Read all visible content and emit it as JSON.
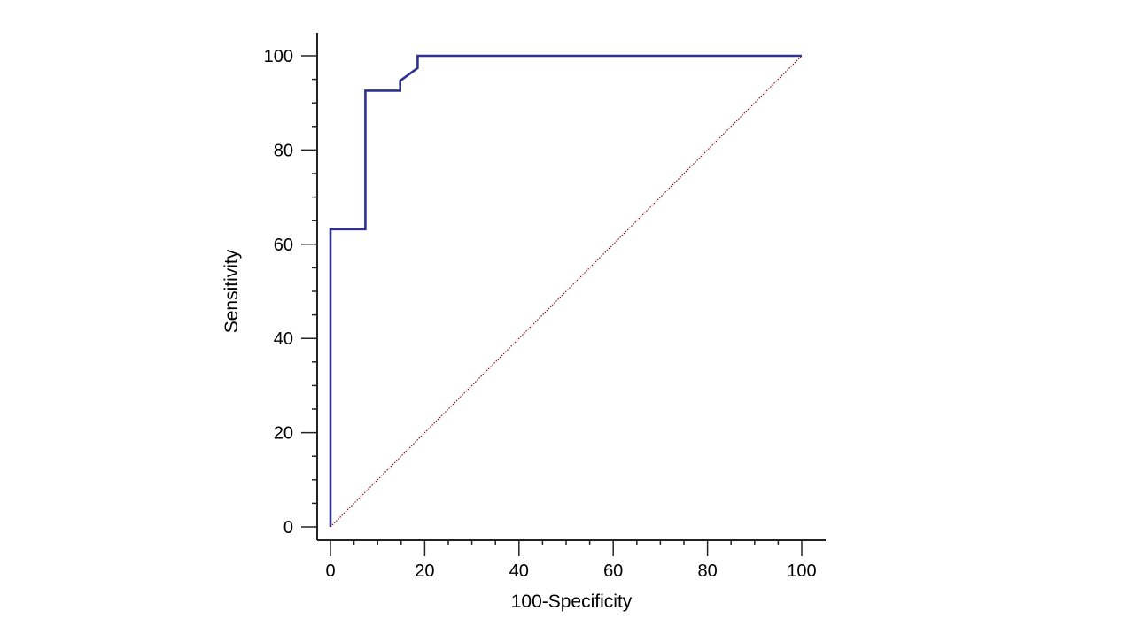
{
  "chart_data": {
    "type": "line",
    "title": "",
    "xlabel": "100-Specificity",
    "ylabel": "Sensitivity",
    "xlim": [
      0,
      100
    ],
    "ylim": [
      0,
      100
    ],
    "xticks": [
      0,
      20,
      40,
      60,
      80,
      100
    ],
    "yticks": [
      0,
      20,
      40,
      60,
      80,
      100
    ],
    "grid": false,
    "series": [
      {
        "x": [
          0,
          0,
          7.4,
          7.4,
          14.8,
          14.8,
          18.5,
          18.5,
          100
        ],
        "y": [
          0,
          63.2,
          63.2,
          92.6,
          92.6,
          94.7,
          97.4,
          100,
          100
        ],
        "color": "#2e3192",
        "style": "solid"
      },
      {
        "x": [
          0,
          100
        ],
        "y": [
          0,
          100
        ],
        "color": "#8b1a1a",
        "style": "dotted"
      }
    ]
  }
}
